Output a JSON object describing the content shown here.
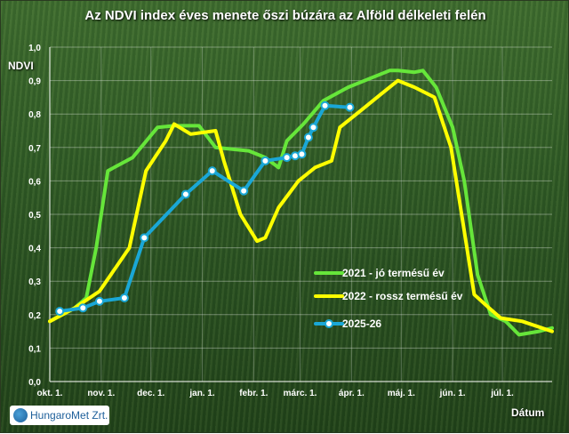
{
  "chart_data": {
    "type": "line",
    "title": "Az NDVI index éves menete őszi búzára az Alföld délkeleti felén",
    "ylabel": "NDVI",
    "xlabel": "Dátum",
    "ylim": [
      0,
      1.0
    ],
    "yticks": [
      "0,0",
      "0,1",
      "0,2",
      "0,3",
      "0,4",
      "0,5",
      "0,6",
      "0,7",
      "0,8",
      "0,9",
      "1,0"
    ],
    "xticks": [
      "okt. 1.",
      "nov. 1.",
      "dec. 1.",
      "jan. 1.",
      "febr. 1.",
      "márc. 1.",
      "ápr. 1.",
      "máj. 1.",
      "jún. 1.",
      "júl. 1."
    ],
    "xlim_days": [
      0,
      303
    ],
    "grid": true,
    "legend_position": "right",
    "series": [
      {
        "name": "2021 - jó termésű év",
        "color": "#66e63a",
        "marker": false,
        "x": [
          0,
          15,
          22,
          28,
          35,
          50,
          65,
          75,
          80,
          90,
          100,
          120,
          130,
          138,
          143,
          153,
          165,
          180,
          195,
          205,
          210,
          220,
          225,
          233,
          243,
          250,
          258,
          266,
          275,
          283,
          295,
          303
        ],
        "y": [
          0.18,
          0.22,
          0.25,
          0.4,
          0.63,
          0.67,
          0.76,
          0.765,
          0.765,
          0.765,
          0.7,
          0.69,
          0.67,
          0.64,
          0.72,
          0.77,
          0.84,
          0.88,
          0.91,
          0.93,
          0.93,
          0.925,
          0.93,
          0.88,
          0.76,
          0.6,
          0.32,
          0.2,
          0.18,
          0.14,
          0.15,
          0.16
        ]
      },
      {
        "name": "2022 - rossz termésű év",
        "color": "#ffff00",
        "marker": false,
        "x": [
          0,
          15,
          30,
          48,
          58,
          70,
          75,
          85,
          100,
          105,
          115,
          125,
          130,
          138,
          150,
          160,
          170,
          175,
          190,
          200,
          210,
          220,
          232,
          242,
          250,
          256,
          265,
          272,
          285,
          303
        ],
        "y": [
          0.18,
          0.22,
          0.27,
          0.4,
          0.63,
          0.72,
          0.77,
          0.74,
          0.75,
          0.66,
          0.5,
          0.42,
          0.43,
          0.52,
          0.6,
          0.64,
          0.66,
          0.76,
          0.82,
          0.86,
          0.9,
          0.88,
          0.85,
          0.7,
          0.45,
          0.26,
          0.22,
          0.19,
          0.18,
          0.15
        ]
      },
      {
        "name": "2025-26",
        "color": "#1aa7d6",
        "marker": true,
        "x": [
          6,
          20,
          30,
          45,
          57,
          82,
          98,
          117,
          130,
          143,
          148,
          152,
          156,
          159,
          166,
          181
        ],
        "y": [
          0.21,
          0.22,
          0.24,
          0.25,
          0.43,
          0.56,
          0.63,
          0.57,
          0.66,
          0.67,
          0.675,
          0.68,
          0.73,
          0.76,
          0.825,
          0.82
        ]
      }
    ]
  }
}
